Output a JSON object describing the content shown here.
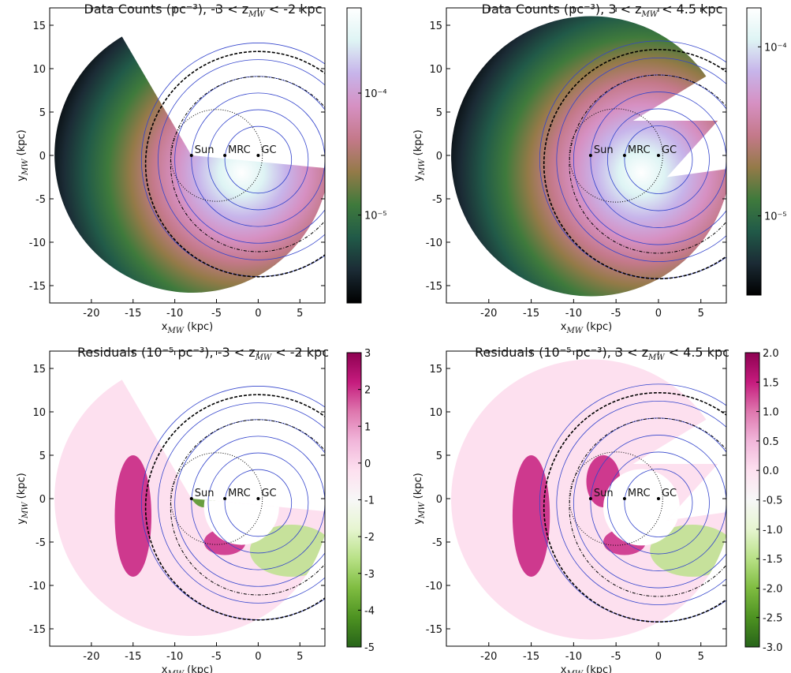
{
  "chart_data": [
    {
      "type": "heatmap",
      "region": "wedge",
      "title": [
        "Data Counts (pc⁻³), -3 < z",
        "MW",
        "  < -2 kpc"
      ],
      "xlabel": [
        "x",
        "MW",
        " (kpc)"
      ],
      "ylabel": [
        "y",
        "MW",
        " (kpc)"
      ],
      "xlim": [
        -25,
        8
      ],
      "ylim": [
        -17,
        17
      ],
      "xticks": [
        -20,
        -15,
        -10,
        -5,
        0,
        5
      ],
      "yticks": [
        -15,
        -10,
        -5,
        0,
        5,
        10,
        15
      ],
      "points": {
        "labels": [
          "Sun",
          "MRC",
          "GC"
        ],
        "x": [
          -8,
          -4,
          0
        ],
        "y": [
          0,
          0,
          0
        ]
      },
      "colorbar": {
        "scale": "log",
        "lim": [
          1.9e-06,
          0.0005
        ],
        "ticks": [
          {
            "value": 1e-05,
            "label": "10⁻⁵"
          },
          {
            "value": 0.0001,
            "label": "10⁻⁴"
          }
        ],
        "colors": [
          "#000000",
          "#1b2b35",
          "#215a48",
          "#3f7a3c",
          "#947a48",
          "#c4798a",
          "#d690c2",
          "#c7b4ea",
          "#def4f4",
          "#ffffff"
        ]
      }
    },
    {
      "type": "heatmap",
      "region": "bite",
      "title": [
        "Data Counts (pc⁻³), 3 < z",
        "MW",
        "  < 4.5 kpc"
      ],
      "xlabel": [
        "x",
        "MW",
        " (kpc)"
      ],
      "ylabel": [
        "y",
        "MW",
        " (kpc)"
      ],
      "xlim": [
        -25,
        8
      ],
      "ylim": [
        -17,
        17
      ],
      "xticks": [
        -20,
        -15,
        -10,
        -5,
        0,
        5
      ],
      "yticks": [
        -15,
        -10,
        -5,
        0,
        5,
        10,
        15
      ],
      "points": {
        "labels": [
          "Sun",
          "MRC",
          "GC"
        ],
        "x": [
          -8,
          -4,
          0
        ],
        "y": [
          0,
          0,
          0
        ]
      },
      "colorbar": {
        "scale": "log",
        "lim": [
          3.4e-06,
          0.00017
        ],
        "ticks": [
          {
            "value": 1e-05,
            "label": "10⁻⁵"
          },
          {
            "value": 0.0001,
            "label": "10⁻⁴"
          }
        ],
        "colors": [
          "#000000",
          "#1b2b35",
          "#215a48",
          "#3f7a3c",
          "#947a48",
          "#c4798a",
          "#d690c2",
          "#c7b4ea",
          "#def4f4",
          "#ffffff"
        ]
      }
    },
    {
      "type": "residual",
      "region": "wedge",
      "title": [
        "Residuals (10⁻⁵ pc⁻³), -3 < z",
        "MW",
        "  < -2 kpc"
      ],
      "xlabel": [
        "x",
        "MW",
        " (kpc)"
      ],
      "ylabel": [
        "y",
        "MW",
        " (kpc)"
      ],
      "xlim": [
        -25,
        8
      ],
      "ylim": [
        -17,
        17
      ],
      "xticks": [
        -20,
        -15,
        -10,
        -5,
        0,
        5
      ],
      "yticks": [
        -15,
        -10,
        -5,
        0,
        5,
        10,
        15
      ],
      "points": {
        "labels": [
          "Sun",
          "MRC",
          "GC"
        ],
        "x": [
          -8,
          -4,
          0
        ],
        "y": [
          0,
          0,
          0
        ]
      },
      "colorbar": {
        "scale": "linear",
        "lim": [
          -5,
          3
        ],
        "ticks": [
          -5,
          -4,
          -3,
          -2,
          -1,
          0,
          1,
          2,
          3
        ],
        "colors": [
          "#276419",
          "#4d9221",
          "#7fbc41",
          "#b8e186",
          "#e6f5d0",
          "#f7f7f7",
          "#fde0ef",
          "#f1b6da",
          "#de77ae",
          "#c51b7d",
          "#8e0152"
        ]
      }
    },
    {
      "type": "residual",
      "region": "bite",
      "title": [
        "Residuals (10⁻⁵ pc⁻³), 3 < z",
        "MW",
        "  < 4.5 kpc"
      ],
      "xlabel": [
        "x",
        "MW",
        " (kpc)"
      ],
      "ylabel": [
        "y",
        "MW",
        " (kpc)"
      ],
      "xlim": [
        -25,
        8
      ],
      "ylim": [
        -17,
        17
      ],
      "xticks": [
        -20,
        -15,
        -10,
        -5,
        0,
        5
      ],
      "yticks": [
        -15,
        -10,
        -5,
        0,
        5,
        10,
        15
      ],
      "points": {
        "labels": [
          "Sun",
          "MRC",
          "GC"
        ],
        "x": [
          -8,
          -4,
          0
        ],
        "y": [
          0,
          0,
          0
        ]
      },
      "colorbar": {
        "scale": "linear",
        "lim": [
          -3,
          2
        ],
        "ticks": [
          {
            "value": -3,
            "label": "-3.0"
          },
          -2.5,
          {
            "value": -2,
            "label": "-2.0"
          },
          -1.5,
          {
            "value": -1,
            "label": "-1.0"
          },
          -0.5,
          {
            "value": 0,
            "label": "0.0"
          },
          0.5,
          {
            "value": 1,
            "label": "1.0"
          },
          1.5,
          {
            "value": 2,
            "label": "2.0"
          }
        ],
        "colors": [
          "#276419",
          "#4d9221",
          "#7fbc41",
          "#b8e186",
          "#e6f5d0",
          "#f7f7f7",
          "#fde0ef",
          "#f1b6da",
          "#de77ae",
          "#c51b7d",
          "#8e0152"
        ]
      }
    }
  ]
}
